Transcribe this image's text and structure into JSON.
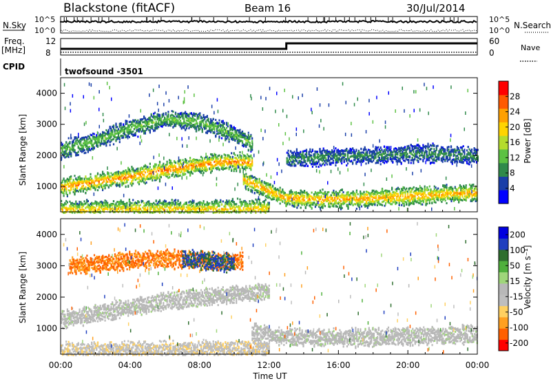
{
  "header": {
    "station": "Blackstone (fitACF)",
    "beam": "Beam 16",
    "date": "30/Jul/2014"
  },
  "top_panels": {
    "nsky_label": "N.Sky",
    "nsky_ticks": [
      "10^5",
      "10^0"
    ],
    "nsearch_label": "N.Search",
    "nsearch_ticks": [
      "10^5",
      "10^0"
    ],
    "freq_label": "Freq.",
    "freq_unit": "[MHz]",
    "freq_ticks": [
      "12",
      "8"
    ],
    "nave_label": "Nave",
    "nave_ticks": [
      "60",
      "0"
    ],
    "cpid_label": "CPID",
    "cpid_value": "twofsound  -3501"
  },
  "colors": {
    "power": [
      "#0000ff",
      "#1a3fa8",
      "#2f8a4a",
      "#5cc142",
      "#b5dc2d",
      "#ffd400",
      "#ffa000",
      "#ff5a00",
      "#ff0000"
    ],
    "velocity": [
      "#ff0000",
      "#ff6000",
      "#ffa020",
      "#ffd060",
      "#bebebe",
      "#b8b8b8",
      "#9fd67a",
      "#4fb03c",
      "#2e6e2e",
      "#1f3fbf",
      "#0000e0"
    ]
  },
  "chart_data": [
    {
      "type": "heatmap",
      "name": "power",
      "xlabel": "Time UT",
      "ylabel": "Slant Range [km]",
      "xlim": [
        0,
        24
      ],
      "ylim": [
        180,
        4500
      ],
      "x_ticks": [
        "00:00",
        "04:00",
        "08:00",
        "12:00",
        "16:00",
        "20:00",
        "00:00"
      ],
      "y_ticks": [
        "1000",
        "2000",
        "3000",
        "4000"
      ],
      "colorbar": {
        "label": "Power [dB]",
        "ticks": [
          "4",
          "8",
          "12",
          "16",
          "20",
          "24",
          "28"
        ],
        "range": [
          0,
          30
        ]
      },
      "bands": [
        {
          "t": [
            0,
            1,
            2,
            3,
            4,
            5,
            6,
            7,
            8,
            9,
            10,
            11
          ],
          "r": [
            1000,
            1080,
            1170,
            1260,
            1350,
            1450,
            1550,
            1640,
            1720,
            1800,
            1820,
            1800
          ],
          "level": 25
        },
        {
          "t": [
            10.5,
            11.5,
            12.5,
            13,
            15,
            17,
            19,
            21,
            22,
            23,
            24
          ],
          "r": [
            1250,
            1000,
            750,
            650,
            620,
            630,
            680,
            740,
            780,
            800,
            820
          ],
          "level": 23
        },
        {
          "t": [
            0,
            2,
            4,
            6,
            8,
            10,
            11
          ],
          "r": [
            2200,
            2500,
            2900,
            3200,
            3100,
            2700,
            2400
          ],
          "level": 12
        },
        {
          "t": [
            13,
            16,
            19,
            21,
            23,
            24
          ],
          "r": [
            1900,
            2000,
            2050,
            2100,
            2050,
            2000
          ],
          "level": 8
        },
        {
          "t": [
            0,
            3,
            6,
            9,
            12
          ],
          "r": [
            280,
            290,
            300,
            300,
            320
          ],
          "level": 20
        }
      ]
    },
    {
      "type": "heatmap",
      "name": "velocity",
      "xlabel": "Time UT",
      "ylabel": "Slant Range [km]",
      "xlim": [
        0,
        24
      ],
      "ylim": [
        180,
        4500
      ],
      "x_ticks": [
        "00:00",
        "04:00",
        "08:00",
        "12:00",
        "16:00",
        "20:00",
        "00:00"
      ],
      "y_ticks": [
        "1000",
        "2000",
        "3000",
        "4000"
      ],
      "colorbar": {
        "label": "Velocity [m s⁻¹]",
        "ticks": [
          "200",
          "100",
          "50",
          "15",
          "-15",
          "-50",
          "-100",
          "-200"
        ],
        "range": [
          -250,
          250
        ]
      },
      "bands": [
        {
          "t": [
            0,
            2,
            4,
            6,
            8,
            10,
            12
          ],
          "r": [
            1300,
            1500,
            1700,
            1900,
            2000,
            2100,
            2200
          ],
          "v": 0
        },
        {
          "t": [
            11,
            13,
            16,
            19,
            22,
            24
          ],
          "r": [
            900,
            760,
            720,
            760,
            820,
            840
          ],
          "v": 0
        },
        {
          "t": [
            0.5,
            2,
            4,
            6,
            8,
            9,
            10.5
          ],
          "r": [
            3000,
            3100,
            3200,
            3250,
            3200,
            3150,
            3200
          ],
          "v": -180
        },
        {
          "t": [
            7,
            8.5,
            10
          ],
          "r": [
            3250,
            3200,
            3100
          ],
          "v": 180
        },
        {
          "t": [
            0,
            3,
            6,
            9,
            12
          ],
          "r": [
            300,
            320,
            340,
            350,
            360
          ],
          "v": -60
        }
      ]
    }
  ]
}
